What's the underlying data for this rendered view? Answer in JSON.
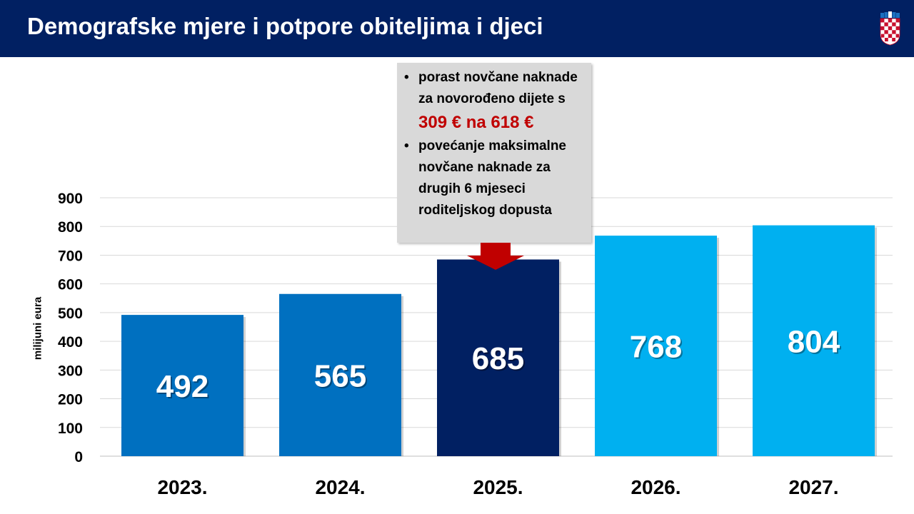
{
  "header": {
    "title": "Demografske mjere i potpore obiteljima i djeci",
    "background": "#012062"
  },
  "callout": {
    "item1": "porast novčane naknade za novorođeno dijete s",
    "item1_highlight": "309 € na 618 €",
    "item2": "povećanje maksimalne novčane naknade za drugih 6 mjeseci roditeljskog dopusta",
    "bullet": "•",
    "highlight_color": "#c00000",
    "arrow_color": "#c00000"
  },
  "chart_data": {
    "type": "bar",
    "title": "",
    "xlabel": "",
    "ylabel": "milijuni eura",
    "ylim": [
      0,
      900
    ],
    "yticks": [
      0,
      100,
      200,
      300,
      400,
      500,
      600,
      700,
      800,
      900
    ],
    "grid": true,
    "categories": [
      "2023.",
      "2024.",
      "2025.",
      "2026.",
      "2027."
    ],
    "values": [
      492,
      565,
      685,
      768,
      804
    ],
    "data_labels": [
      "492",
      "565",
      "685",
      "768",
      "804"
    ],
    "colors": [
      "#0070c0",
      "#0070c0",
      "#012062",
      "#00b0f0",
      "#00b0f0"
    ]
  }
}
